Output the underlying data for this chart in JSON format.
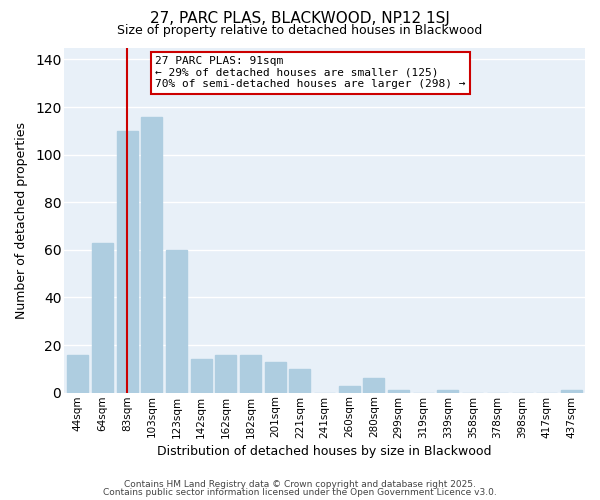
{
  "title": "27, PARC PLAS, BLACKWOOD, NP12 1SJ",
  "subtitle": "Size of property relative to detached houses in Blackwood",
  "xlabel": "Distribution of detached houses by size in Blackwood",
  "ylabel": "Number of detached properties",
  "bar_labels": [
    "44sqm",
    "64sqm",
    "83sqm",
    "103sqm",
    "123sqm",
    "142sqm",
    "162sqm",
    "182sqm",
    "201sqm",
    "221sqm",
    "241sqm",
    "260sqm",
    "280sqm",
    "299sqm",
    "319sqm",
    "339sqm",
    "358sqm",
    "378sqm",
    "398sqm",
    "417sqm",
    "437sqm"
  ],
  "bar_values": [
    16,
    63,
    110,
    116,
    60,
    14,
    16,
    16,
    13,
    10,
    0,
    3,
    6,
    1,
    0,
    1,
    0,
    0,
    0,
    0,
    1
  ],
  "bar_color": "#aecde0",
  "bar_edge_color": "#aecde0",
  "vline_x_index": 2,
  "vline_color": "#cc0000",
  "annotation_title": "27 PARC PLAS: 91sqm",
  "annotation_line1": "← 29% of detached houses are smaller (125)",
  "annotation_line2": "70% of semi-detached houses are larger (298) →",
  "annotation_box_facecolor": "#ffffff",
  "annotation_box_edgecolor": "#cc0000",
  "ylim": [
    0,
    145
  ],
  "yticks": [
    0,
    20,
    40,
    60,
    80,
    100,
    120,
    140
  ],
  "footer1": "Contains HM Land Registry data © Crown copyright and database right 2025.",
  "footer2": "Contains public sector information licensed under the Open Government Licence v3.0.",
  "background_color": "#ffffff",
  "plot_bg_color": "#e8f0f8",
  "grid_color": "#ffffff",
  "title_fontsize": 11,
  "subtitle_fontsize": 9
}
